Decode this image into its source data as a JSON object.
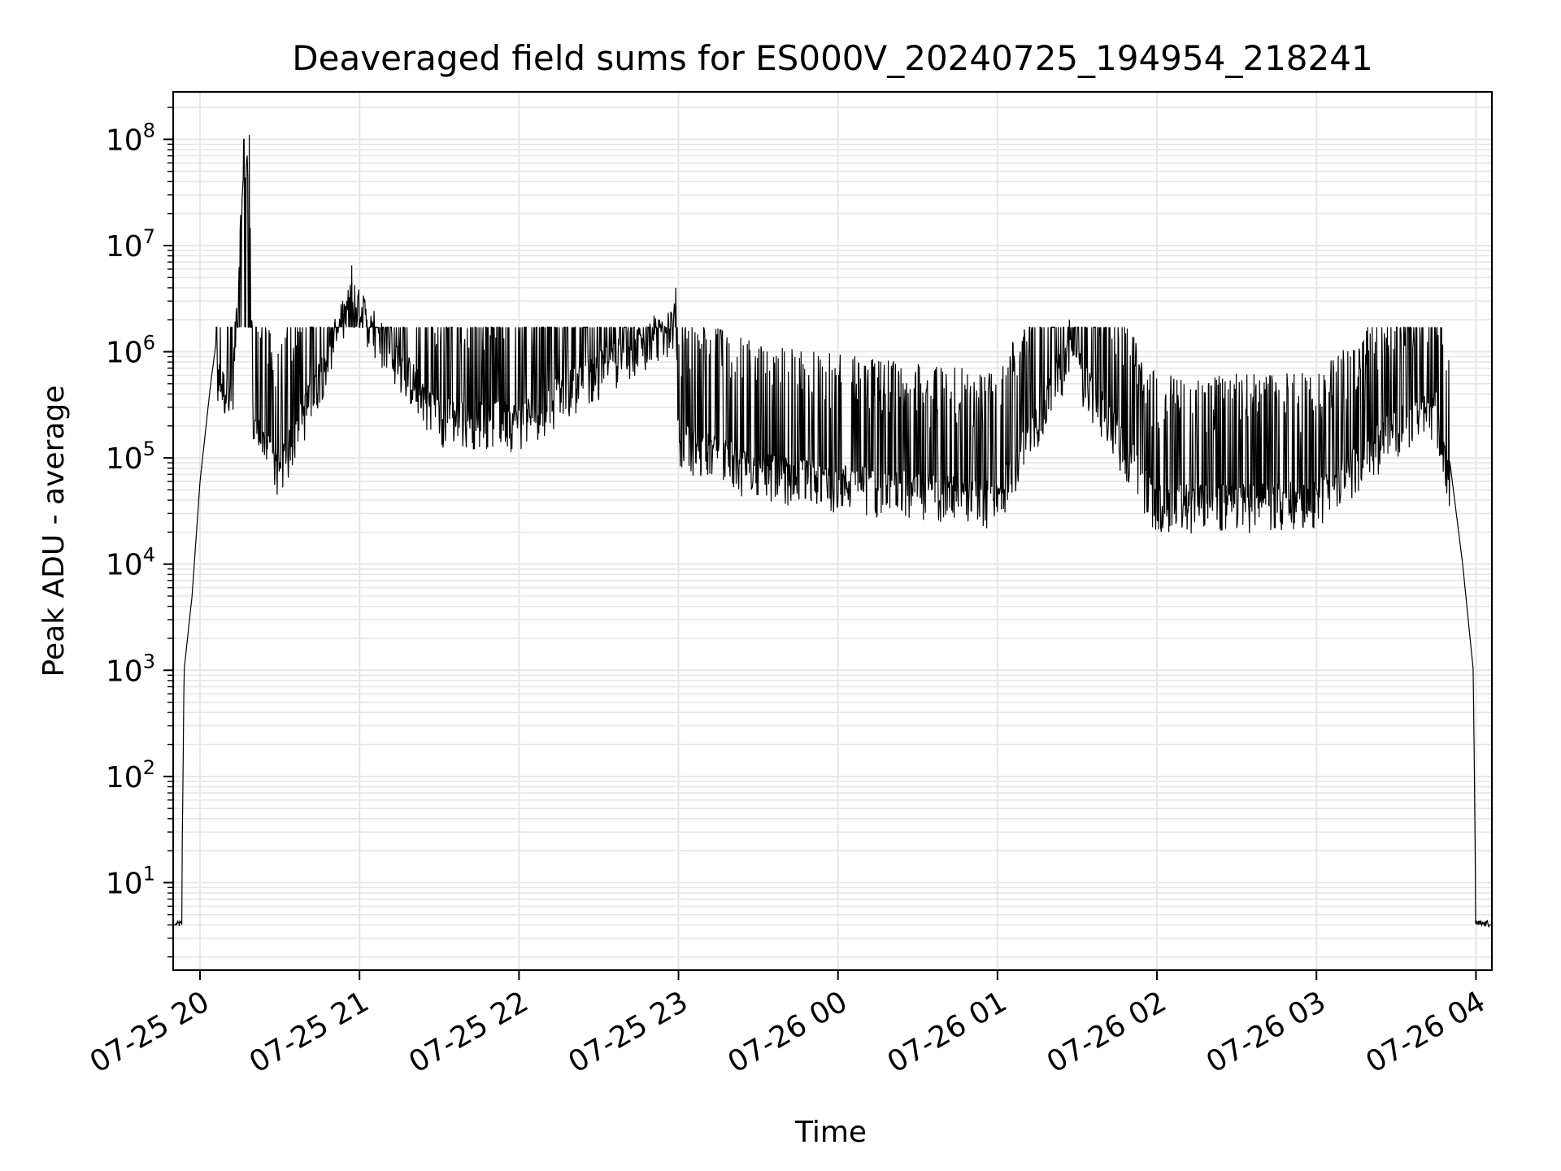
{
  "chart_data": {
    "type": "line",
    "title": "Deaveraged field sums for ES000V_20240725_194954_218241",
    "xlabel": "Time",
    "ylabel": "Peak ADU - average",
    "yscale": "log",
    "ylim": [
      1.5,
      280000000
    ],
    "xlim": [
      "2024-07-25 19:49:54",
      "2024-07-26 04:06:00"
    ],
    "grid": "on (major and minor)",
    "line_color": "#000000",
    "grid_color": "#e6e6e6",
    "x_ticks": [
      "07-25 20",
      "07-25 21",
      "07-25 22",
      "07-25 23",
      "07-26 00",
      "07-26 01",
      "07-26 02",
      "07-26 03",
      "07-26 04"
    ],
    "y_ticks": [
      {
        "base": "10",
        "exp": "1"
      },
      {
        "base": "10",
        "exp": "2"
      },
      {
        "base": "10",
        "exp": "3"
      },
      {
        "base": "10",
        "exp": "4"
      },
      {
        "base": "10",
        "exp": "5"
      },
      {
        "base": "10",
        "exp": "6"
      },
      {
        "base": "10",
        "exp": "7"
      },
      {
        "base": "10",
        "exp": "8"
      }
    ],
    "series": [
      {
        "values_approx": [
          {
            "x": "2024-07-25 19:49:54",
            "y": 4
          },
          {
            "x": "2024-07-25 19:53:00",
            "y": 4
          },
          {
            "x": "2024-07-25 19:54:00",
            "y": 1000
          },
          {
            "x": "2024-07-25 19:57:00",
            "y": 5000
          },
          {
            "x": "2024-07-25 20:00:00",
            "y": 60000
          },
          {
            "x": "2024-07-25 20:04:00",
            "y": 500000
          },
          {
            "x": "2024-07-25 20:06:00",
            "y": 1200000
          },
          {
            "x": "2024-07-25 20:12:00",
            "y": 700000
          },
          {
            "x": "2024-07-25 20:16:30",
            "y": 100000000
          },
          {
            "x": "2024-07-25 20:18:30",
            "y": 110000000
          },
          {
            "x": "2024-07-25 20:20:00",
            "y": 400000
          },
          {
            "x": "2024-07-25 20:30:00",
            "y": 150000
          },
          {
            "x": "2024-07-25 20:57:00",
            "y": 6500000
          },
          {
            "x": "2024-07-25 21:30:00",
            "y": 500000
          },
          {
            "x": "2024-07-25 22:00:00",
            "y": 450000
          },
          {
            "x": "2024-07-25 22:59:00",
            "y": 4000000
          },
          {
            "x": "2024-07-25 23:00:00",
            "y": 300000
          },
          {
            "x": "2024-07-25 23:30:00",
            "y": 150000
          },
          {
            "x": "2024-07-26 00:00:00",
            "y": 120000
          },
          {
            "x": "2024-07-26 00:30:00",
            "y": 100000
          },
          {
            "x": "2024-07-26 01:00:00",
            "y": 80000
          },
          {
            "x": "2024-07-26 01:27:00",
            "y": 2000000
          },
          {
            "x": "2024-07-26 02:00:00",
            "y": 75000
          },
          {
            "x": "2024-07-26 03:00:00",
            "y": 80000
          },
          {
            "x": "2024-07-26 03:30:00",
            "y": 400000
          },
          {
            "x": "2024-07-26 03:45:00",
            "y": 600000
          },
          {
            "x": "2024-07-26 03:50:00",
            "y": 100000
          },
          {
            "x": "2024-07-26 03:55:00",
            "y": 10000
          },
          {
            "x": "2024-07-26 03:59:00",
            "y": 1000
          },
          {
            "x": "2024-07-26 04:00:00",
            "y": 4
          },
          {
            "x": "2024-07-26 04:06:00",
            "y": 4
          }
        ]
      }
    ]
  }
}
